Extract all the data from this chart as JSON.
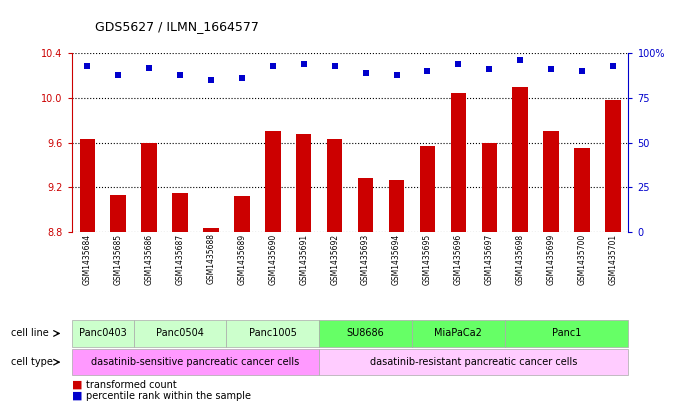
{
  "title": "GDS5627 / ILMN_1664577",
  "samples": [
    "GSM1435684",
    "GSM1435685",
    "GSM1435686",
    "GSM1435687",
    "GSM1435688",
    "GSM1435689",
    "GSM1435690",
    "GSM1435691",
    "GSM1435692",
    "GSM1435693",
    "GSM1435694",
    "GSM1435695",
    "GSM1435696",
    "GSM1435697",
    "GSM1435698",
    "GSM1435699",
    "GSM1435700",
    "GSM1435701"
  ],
  "bar_values": [
    9.63,
    9.13,
    9.6,
    9.15,
    8.84,
    9.12,
    9.7,
    9.68,
    9.63,
    9.28,
    9.27,
    9.57,
    10.04,
    9.6,
    10.1,
    9.7,
    9.55,
    9.98
  ],
  "percentile_values": [
    93,
    88,
    92,
    88,
    85,
    86,
    93,
    94,
    93,
    89,
    88,
    90,
    94,
    91,
    96,
    91,
    90,
    93
  ],
  "bar_color": "#cc0000",
  "percentile_color": "#0000cc",
  "ylim_left": [
    8.8,
    10.4
  ],
  "ylim_right": [
    0,
    100
  ],
  "yticks_left": [
    8.8,
    9.2,
    9.6,
    10.0,
    10.4
  ],
  "yticks_right": [
    0,
    25,
    50,
    75,
    100
  ],
  "ytick_labels_right": [
    "0",
    "25",
    "50",
    "75",
    "100%"
  ],
  "cell_lines": [
    {
      "label": "Panc0403",
      "start": 0,
      "end": 2,
      "color": "#ccffcc"
    },
    {
      "label": "Panc0504",
      "start": 2,
      "end": 5,
      "color": "#ccffcc"
    },
    {
      "label": "Panc1005",
      "start": 5,
      "end": 8,
      "color": "#ccffcc"
    },
    {
      "label": "SU8686",
      "start": 8,
      "end": 11,
      "color": "#66ff66"
    },
    {
      "label": "MiaPaCa2",
      "start": 11,
      "end": 14,
      "color": "#66ff66"
    },
    {
      "label": "Panc1",
      "start": 14,
      "end": 18,
      "color": "#66ff66"
    }
  ],
  "cell_types": [
    {
      "label": "dasatinib-sensitive pancreatic cancer cells",
      "start": 0,
      "end": 8,
      "color": "#ff99ff"
    },
    {
      "label": "dasatinib-resistant pancreatic cancer cells",
      "start": 8,
      "end": 18,
      "color": "#ffccff"
    }
  ],
  "legend_items": [
    {
      "label": "transformed count",
      "color": "#cc0000"
    },
    {
      "label": "percentile rank within the sample",
      "color": "#0000cc"
    }
  ],
  "cell_line_label": "cell line",
  "cell_type_label": "cell type",
  "bg_color": "#ffffff"
}
